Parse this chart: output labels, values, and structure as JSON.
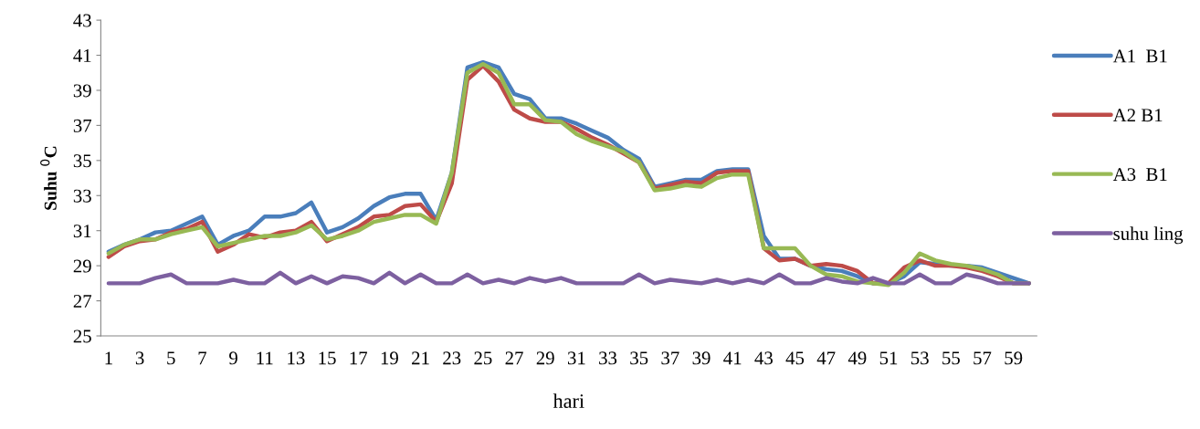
{
  "chart_data": {
    "type": "line",
    "xlabel": "hari",
    "ylabel": "Suhu $^{0}$C",
    "categories": [
      "1",
      null,
      "3",
      null,
      "5",
      null,
      "7",
      null,
      "9",
      null,
      "11",
      null,
      "13",
      null,
      "15",
      null,
      "17",
      null,
      "19",
      null,
      "21",
      null,
      "23",
      null,
      "25",
      null,
      "27",
      null,
      "29",
      null,
      "31",
      null,
      "33",
      null,
      "35",
      null,
      "37",
      null,
      "39",
      null,
      "41",
      null,
      "43",
      null,
      "45",
      null,
      "47",
      null,
      "49",
      null,
      "51",
      null,
      "53",
      null,
      "55",
      null,
      "57",
      null,
      "59",
      null
    ],
    "series": [
      {
        "name": "A1  B1",
        "color": "#4a7ebb",
        "values": [
          29.8,
          30.2,
          30.5,
          30.9,
          31.0,
          31.4,
          31.8,
          30.2,
          30.7,
          31.0,
          31.8,
          31.8,
          32.0,
          32.6,
          30.9,
          31.2,
          31.7,
          32.4,
          32.9,
          33.1,
          33.1,
          31.6,
          34.3,
          40.3,
          40.6,
          40.3,
          38.8,
          38.5,
          37.4,
          37.4,
          37.1,
          36.7,
          36.3,
          35.6,
          35.1,
          33.5,
          33.7,
          33.9,
          33.9,
          34.4,
          34.5,
          34.5,
          30.7,
          29.4,
          29.4,
          29.0,
          28.8,
          28.7,
          28.4,
          28.0,
          28.0,
          28.4,
          29.2,
          29.1,
          29.0,
          29.0,
          28.9,
          28.6,
          28.3,
          28.0
        ]
      },
      {
        "name": "A2 B1",
        "color": "#be4b48",
        "values": [
          29.5,
          30.1,
          30.4,
          30.5,
          30.9,
          31.1,
          31.5,
          29.8,
          30.2,
          30.8,
          30.6,
          30.9,
          31.0,
          31.5,
          30.4,
          30.8,
          31.2,
          31.8,
          31.9,
          32.4,
          32.5,
          31.5,
          33.7,
          39.6,
          40.4,
          39.5,
          37.9,
          37.4,
          37.2,
          37.2,
          36.8,
          36.3,
          35.9,
          35.4,
          34.9,
          33.4,
          33.6,
          33.8,
          33.7,
          34.3,
          34.4,
          34.4,
          30.0,
          29.3,
          29.4,
          29.0,
          29.1,
          29.0,
          28.7,
          28.0,
          28.0,
          28.9,
          29.3,
          29.0,
          29.0,
          28.9,
          28.7,
          28.4,
          28.0,
          28.0
        ]
      },
      {
        "name": "A3  B1",
        "color": "#98b954",
        "values": [
          29.7,
          30.2,
          30.5,
          30.5,
          30.8,
          31.0,
          31.2,
          30.1,
          30.3,
          30.5,
          30.7,
          30.7,
          30.9,
          31.3,
          30.5,
          30.7,
          31.0,
          31.5,
          31.7,
          31.9,
          31.9,
          31.4,
          34.3,
          40.0,
          40.5,
          40.0,
          38.2,
          38.2,
          37.3,
          37.2,
          36.5,
          36.1,
          35.8,
          35.5,
          34.9,
          33.3,
          33.4,
          33.6,
          33.5,
          34.0,
          34.2,
          34.2,
          30.0,
          30.0,
          30.0,
          29.0,
          28.5,
          28.4,
          28.1,
          28.0,
          27.9,
          28.6,
          29.7,
          29.3,
          29.1,
          29.0,
          28.8,
          28.5,
          28.0,
          28.0
        ]
      },
      {
        "name": "suhu ling",
        "color": "#7d60a0",
        "values": [
          28,
          28,
          28,
          28.3,
          28.5,
          28,
          28,
          28,
          28.2,
          28,
          28,
          28.6,
          28,
          28.4,
          28,
          28.4,
          28.3,
          28,
          28.6,
          28,
          28.5,
          28,
          28,
          28.5,
          28,
          28.2,
          28,
          28.3,
          28.1,
          28.3,
          28,
          28,
          28,
          28,
          28.5,
          28,
          28.2,
          28.1,
          28,
          28.2,
          28,
          28.2,
          28,
          28.5,
          28,
          28,
          28.3,
          28.1,
          28,
          28.3,
          28,
          28,
          28.5,
          28,
          28,
          28.5,
          28.3,
          28,
          28,
          28
        ]
      }
    ],
    "ylim": [
      25,
      43
    ],
    "yticks": [
      25,
      27,
      29,
      31,
      33,
      35,
      37,
      39,
      41,
      43
    ],
    "grid": false,
    "legend": "right",
    "marker": "none",
    "line_style": "solid"
  }
}
